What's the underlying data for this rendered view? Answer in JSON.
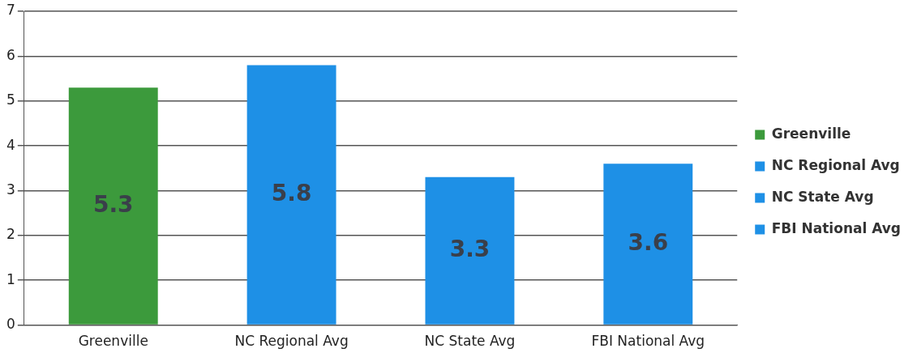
{
  "chart_data": {
    "type": "bar",
    "categories": [
      "Greenville",
      "NC Regional Avg",
      "NC State Avg",
      "FBI National Avg"
    ],
    "series": [
      {
        "name": "Greenville",
        "color": "#3c9a3c",
        "values": [
          5.3,
          null,
          null,
          null
        ]
      },
      {
        "name": "NC Regional Avg",
        "color": "#1e90e6",
        "values": [
          null,
          5.8,
          null,
          null
        ]
      },
      {
        "name": "NC State Avg",
        "color": "#1e90e6",
        "values": [
          null,
          null,
          3.3,
          null
        ]
      },
      {
        "name": "FBI National Avg",
        "color": "#1e90e6",
        "values": [
          null,
          null,
          null,
          3.6
        ]
      }
    ],
    "ylim": [
      0,
      7
    ],
    "yticks": [
      0,
      1,
      2,
      3,
      4,
      5,
      6,
      7
    ],
    "grid": "y",
    "legend": "right",
    "data_labels": true
  }
}
